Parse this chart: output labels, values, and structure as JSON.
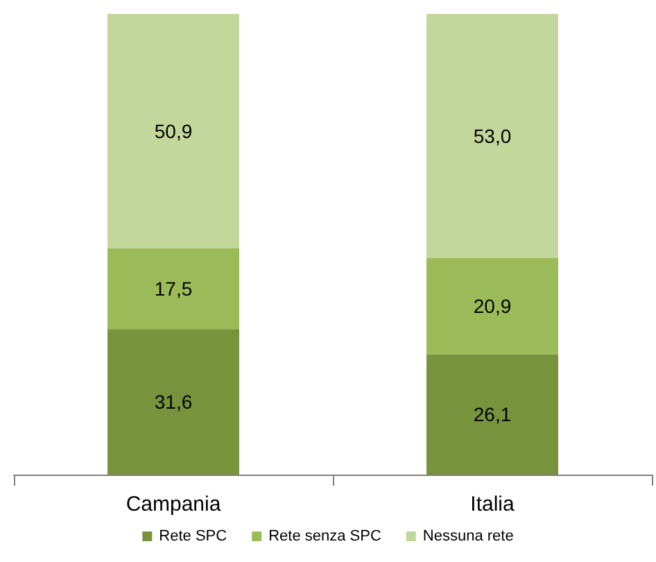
{
  "chart_data": {
    "type": "bar",
    "stacked": true,
    "legend": "bottom",
    "categories": [
      "Campania",
      "Italia"
    ],
    "series": [
      {
        "name": "Rete SPC",
        "color": "#77933c",
        "values": [
          31.6,
          26.1
        ],
        "value_labels": [
          "31,6",
          "26,1"
        ]
      },
      {
        "name": "Rete senza SPC",
        "color": "#9bbb59",
        "values": [
          17.5,
          20.9
        ],
        "value_labels": [
          "17,5",
          "20,9"
        ]
      },
      {
        "name": "Nessuna rete",
        "color": "#c3d69b",
        "values": [
          50.9,
          53.0
        ],
        "value_labels": [
          "50,9",
          "53,0"
        ]
      }
    ]
  }
}
